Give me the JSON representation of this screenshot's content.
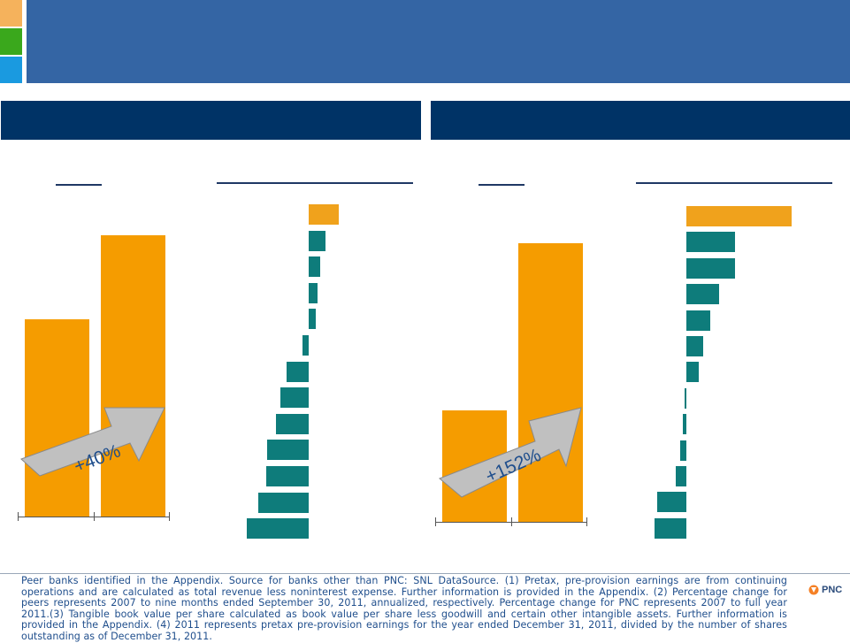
{
  "brand": {
    "logo_text": "PNC",
    "colors": {
      "square_1": "#f5b25c",
      "square_2": "#3aa81c",
      "square_3": "#1a9ae0",
      "title_bar": "#3465a4",
      "panel_header": "#003366",
      "bar_pnc": "#f59c00",
      "bar_highlight": "#f0a21c",
      "bar_peer": "#0e7c7b",
      "arrow": "#c0c0c0"
    }
  },
  "footnote": "Peer banks identified in the Appendix. Source for banks other than PNC: SNL DataSource. (1) Pretax, pre-provision earnings are from continuing operations and are calculated as total revenue less noninterest expense. Further information is provided in the Appendix. (2) Percentage change for peers represents 2007 to nine months ended September 30, 2011, annualized, respectively. Percentage change for PNC represents 2007 to full year 2011.(3) Tangible book value per share calculated as book value per share less goodwill and certain other intangible assets. Further information is provided in the Appendix. (4) 2011 represents  pretax pre-provision earnings  for the year ended December 31, 2011, divided by the number of shares outstanding as of December 31, 2011.",
  "chart_data": [
    {
      "type": "bar",
      "panel": "left",
      "values": [
        0.7,
        1.0
      ],
      "annotation": "+40%"
    },
    {
      "type": "bar",
      "orientation": "horizontal",
      "panel": "left",
      "values": [
        21,
        12,
        8,
        6,
        5,
        -4,
        -15,
        -19,
        -22,
        -28,
        -29,
        -34,
        -42
      ],
      "highlight_index": 0
    },
    {
      "type": "bar",
      "panel": "right",
      "values": [
        0.4,
        1.0
      ],
      "annotation": "+152%"
    },
    {
      "type": "bar",
      "orientation": "horizontal",
      "panel": "right",
      "values": [
        100,
        46,
        46,
        31,
        23,
        16,
        12,
        -1,
        -3,
        -6,
        -10,
        -28,
        -30
      ],
      "highlight_index": 0
    }
  ]
}
